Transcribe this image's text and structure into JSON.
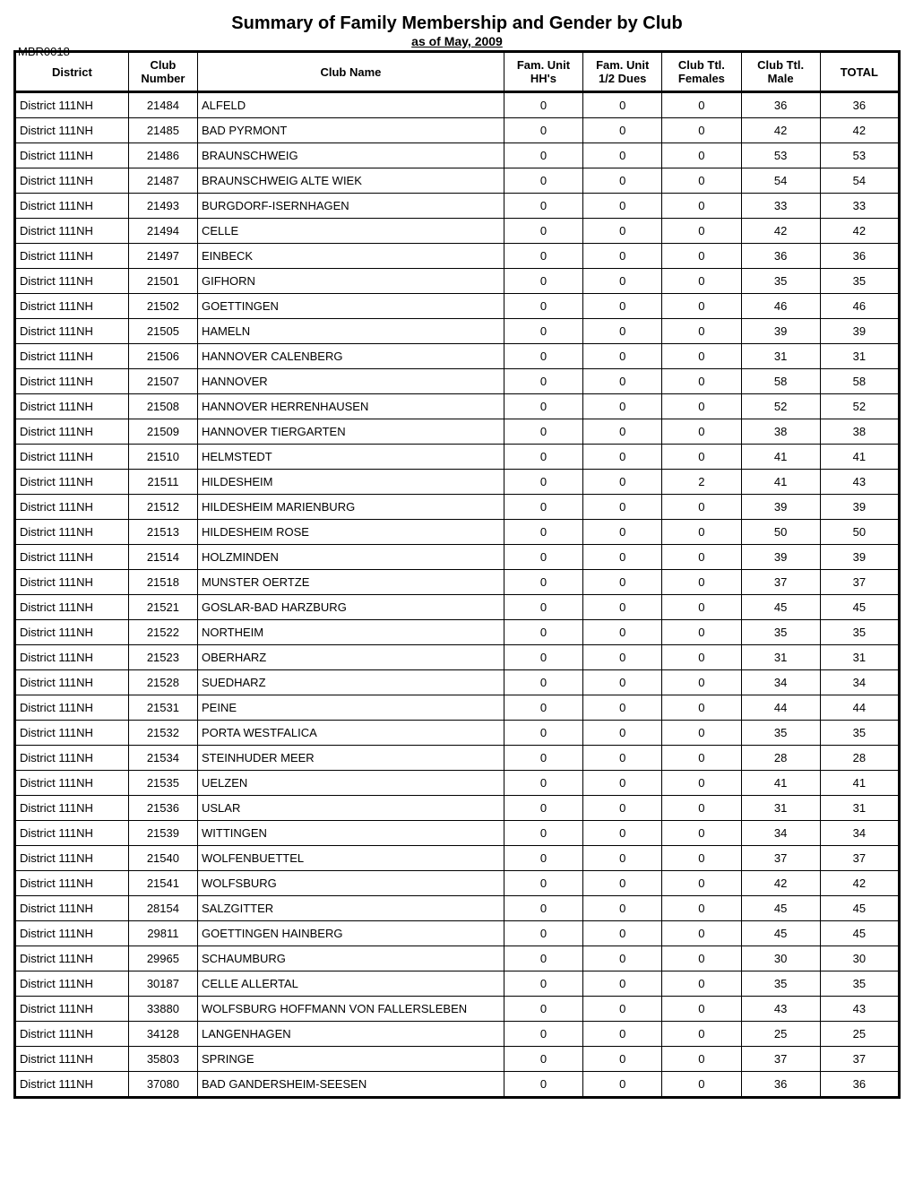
{
  "report": {
    "title": "Summary of Family Membership and Gender by Club",
    "subtitle": "as of May, 2009",
    "id": "MBR0018"
  },
  "columns": {
    "district": "District",
    "clubNumber": "Club\nNumber",
    "clubName": "Club Name",
    "famUnitHH": "Fam. Unit HH's",
    "famUnitHalf": "Fam. Unit 1/2 Dues",
    "clubFemales": "Club Ttl. Females",
    "clubMale": "Club Ttl. Male",
    "total": "TOTAL"
  },
  "rows": [
    {
      "district": "District 111NH",
      "clubNumber": "21484",
      "clubName": "ALFELD",
      "hh": "0",
      "half": "0",
      "females": "0",
      "male": "36",
      "total": "36"
    },
    {
      "district": "District 111NH",
      "clubNumber": "21485",
      "clubName": "BAD PYRMONT",
      "hh": "0",
      "half": "0",
      "females": "0",
      "male": "42",
      "total": "42"
    },
    {
      "district": "District 111NH",
      "clubNumber": "21486",
      "clubName": "BRAUNSCHWEIG",
      "hh": "0",
      "half": "0",
      "females": "0",
      "male": "53",
      "total": "53"
    },
    {
      "district": "District 111NH",
      "clubNumber": "21487",
      "clubName": "BRAUNSCHWEIG ALTE WIEK",
      "hh": "0",
      "half": "0",
      "females": "0",
      "male": "54",
      "total": "54"
    },
    {
      "district": "District 111NH",
      "clubNumber": "21493",
      "clubName": "BURGDORF-ISERNHAGEN",
      "hh": "0",
      "half": "0",
      "females": "0",
      "male": "33",
      "total": "33"
    },
    {
      "district": "District 111NH",
      "clubNumber": "21494",
      "clubName": "CELLE",
      "hh": "0",
      "half": "0",
      "females": "0",
      "male": "42",
      "total": "42"
    },
    {
      "district": "District 111NH",
      "clubNumber": "21497",
      "clubName": "EINBECK",
      "hh": "0",
      "half": "0",
      "females": "0",
      "male": "36",
      "total": "36"
    },
    {
      "district": "District 111NH",
      "clubNumber": "21501",
      "clubName": "GIFHORN",
      "hh": "0",
      "half": "0",
      "females": "0",
      "male": "35",
      "total": "35"
    },
    {
      "district": "District 111NH",
      "clubNumber": "21502",
      "clubName": "GOETTINGEN",
      "hh": "0",
      "half": "0",
      "females": "0",
      "male": "46",
      "total": "46"
    },
    {
      "district": "District 111NH",
      "clubNumber": "21505",
      "clubName": "HAMELN",
      "hh": "0",
      "half": "0",
      "females": "0",
      "male": "39",
      "total": "39"
    },
    {
      "district": "District 111NH",
      "clubNumber": "21506",
      "clubName": "HANNOVER CALENBERG",
      "hh": "0",
      "half": "0",
      "females": "0",
      "male": "31",
      "total": "31"
    },
    {
      "district": "District 111NH",
      "clubNumber": "21507",
      "clubName": "HANNOVER",
      "hh": "0",
      "half": "0",
      "females": "0",
      "male": "58",
      "total": "58"
    },
    {
      "district": "District 111NH",
      "clubNumber": "21508",
      "clubName": "HANNOVER HERRENHAUSEN",
      "hh": "0",
      "half": "0",
      "females": "0",
      "male": "52",
      "total": "52"
    },
    {
      "district": "District 111NH",
      "clubNumber": "21509",
      "clubName": "HANNOVER TIERGARTEN",
      "hh": "0",
      "half": "0",
      "females": "0",
      "male": "38",
      "total": "38"
    },
    {
      "district": "District 111NH",
      "clubNumber": "21510",
      "clubName": "HELMSTEDT",
      "hh": "0",
      "half": "0",
      "females": "0",
      "male": "41",
      "total": "41"
    },
    {
      "district": "District 111NH",
      "clubNumber": "21511",
      "clubName": "HILDESHEIM",
      "hh": "0",
      "half": "0",
      "females": "2",
      "male": "41",
      "total": "43"
    },
    {
      "district": "District 111NH",
      "clubNumber": "21512",
      "clubName": "HILDESHEIM MARIENBURG",
      "hh": "0",
      "half": "0",
      "females": "0",
      "male": "39",
      "total": "39"
    },
    {
      "district": "District 111NH",
      "clubNumber": "21513",
      "clubName": "HILDESHEIM ROSE",
      "hh": "0",
      "half": "0",
      "females": "0",
      "male": "50",
      "total": "50"
    },
    {
      "district": "District 111NH",
      "clubNumber": "21514",
      "clubName": "HOLZMINDEN",
      "hh": "0",
      "half": "0",
      "females": "0",
      "male": "39",
      "total": "39"
    },
    {
      "district": "District 111NH",
      "clubNumber": "21518",
      "clubName": "MUNSTER OERTZE",
      "hh": "0",
      "half": "0",
      "females": "0",
      "male": "37",
      "total": "37"
    },
    {
      "district": "District 111NH",
      "clubNumber": "21521",
      "clubName": "GOSLAR-BAD HARZBURG",
      "hh": "0",
      "half": "0",
      "females": "0",
      "male": "45",
      "total": "45"
    },
    {
      "district": "District 111NH",
      "clubNumber": "21522",
      "clubName": "NORTHEIM",
      "hh": "0",
      "half": "0",
      "females": "0",
      "male": "35",
      "total": "35"
    },
    {
      "district": "District 111NH",
      "clubNumber": "21523",
      "clubName": "OBERHARZ",
      "hh": "0",
      "half": "0",
      "females": "0",
      "male": "31",
      "total": "31"
    },
    {
      "district": "District 111NH",
      "clubNumber": "21528",
      "clubName": "SUEDHARZ",
      "hh": "0",
      "half": "0",
      "females": "0",
      "male": "34",
      "total": "34"
    },
    {
      "district": "District 111NH",
      "clubNumber": "21531",
      "clubName": "PEINE",
      "hh": "0",
      "half": "0",
      "females": "0",
      "male": "44",
      "total": "44"
    },
    {
      "district": "District 111NH",
      "clubNumber": "21532",
      "clubName": "PORTA WESTFALICA",
      "hh": "0",
      "half": "0",
      "females": "0",
      "male": "35",
      "total": "35"
    },
    {
      "district": "District 111NH",
      "clubNumber": "21534",
      "clubName": "STEINHUDER MEER",
      "hh": "0",
      "half": "0",
      "females": "0",
      "male": "28",
      "total": "28"
    },
    {
      "district": "District 111NH",
      "clubNumber": "21535",
      "clubName": "UELZEN",
      "hh": "0",
      "half": "0",
      "females": "0",
      "male": "41",
      "total": "41"
    },
    {
      "district": "District 111NH",
      "clubNumber": "21536",
      "clubName": "USLAR",
      "hh": "0",
      "half": "0",
      "females": "0",
      "male": "31",
      "total": "31"
    },
    {
      "district": "District 111NH",
      "clubNumber": "21539",
      "clubName": "WITTINGEN",
      "hh": "0",
      "half": "0",
      "females": "0",
      "male": "34",
      "total": "34"
    },
    {
      "district": "District 111NH",
      "clubNumber": "21540",
      "clubName": "WOLFENBUETTEL",
      "hh": "0",
      "half": "0",
      "females": "0",
      "male": "37",
      "total": "37"
    },
    {
      "district": "District 111NH",
      "clubNumber": "21541",
      "clubName": "WOLFSBURG",
      "hh": "0",
      "half": "0",
      "females": "0",
      "male": "42",
      "total": "42"
    },
    {
      "district": "District 111NH",
      "clubNumber": "28154",
      "clubName": "SALZGITTER",
      "hh": "0",
      "half": "0",
      "females": "0",
      "male": "45",
      "total": "45"
    },
    {
      "district": "District 111NH",
      "clubNumber": "29811",
      "clubName": "GOETTINGEN HAINBERG",
      "hh": "0",
      "half": "0",
      "females": "0",
      "male": "45",
      "total": "45"
    },
    {
      "district": "District 111NH",
      "clubNumber": "29965",
      "clubName": "SCHAUMBURG",
      "hh": "0",
      "half": "0",
      "females": "0",
      "male": "30",
      "total": "30"
    },
    {
      "district": "District 111NH",
      "clubNumber": "30187",
      "clubName": "CELLE ALLERTAL",
      "hh": "0",
      "half": "0",
      "females": "0",
      "male": "35",
      "total": "35"
    },
    {
      "district": "District 111NH",
      "clubNumber": "33880",
      "clubName": "WOLFSBURG HOFFMANN VON FALLERSLEBEN",
      "hh": "0",
      "half": "0",
      "females": "0",
      "male": "43",
      "total": "43"
    },
    {
      "district": "District 111NH",
      "clubNumber": "34128",
      "clubName": "LANGENHAGEN",
      "hh": "0",
      "half": "0",
      "females": "0",
      "male": "25",
      "total": "25"
    },
    {
      "district": "District 111NH",
      "clubNumber": "35803",
      "clubName": "SPRINGE",
      "hh": "0",
      "half": "0",
      "females": "0",
      "male": "37",
      "total": "37"
    },
    {
      "district": "District 111NH",
      "clubNumber": "37080",
      "clubName": "BAD GANDERSHEIM-SEESEN",
      "hh": "0",
      "half": "0",
      "females": "0",
      "male": "36",
      "total": "36"
    }
  ]
}
